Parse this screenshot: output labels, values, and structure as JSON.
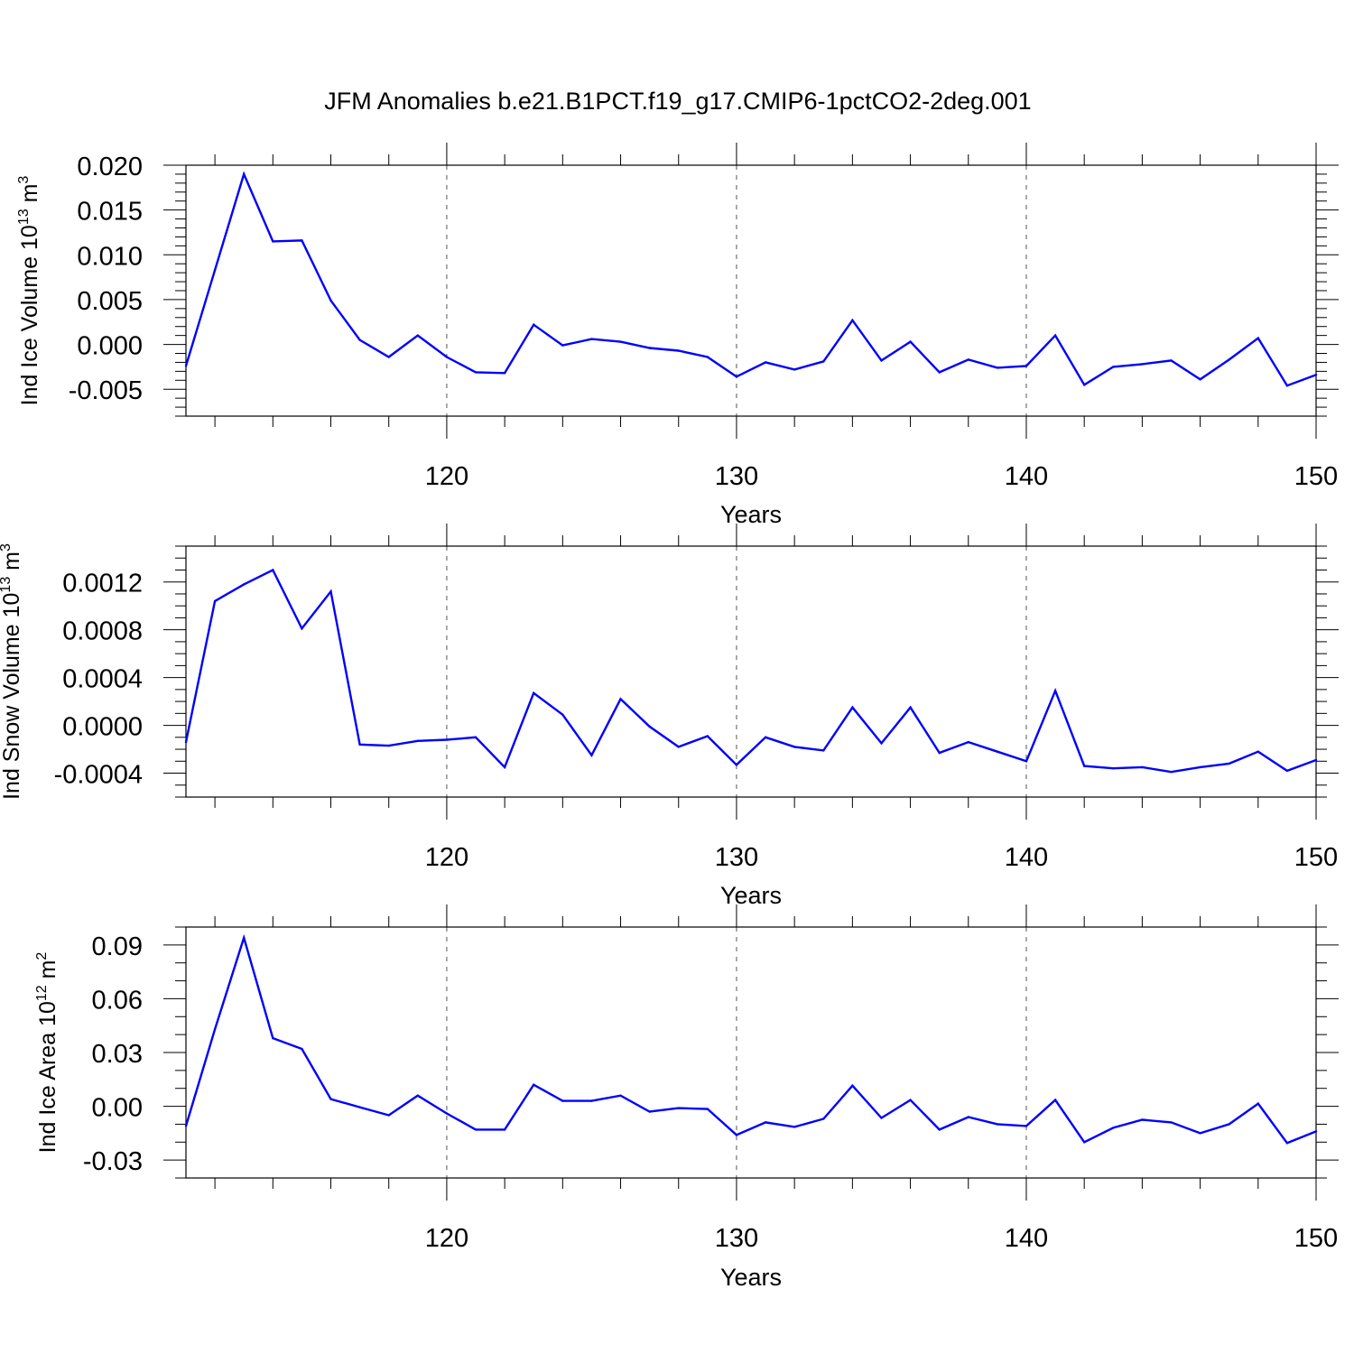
{
  "figure": {
    "title": "JFM Anomalies b.e21.B1PCT.f19_g17.CMIP6-1pctCO2-2deg.001"
  },
  "chart_data": [
    {
      "type": "line",
      "ylabel": "Ind Ice Volume 10",
      "ylabel_sup": "13",
      "ylabel_unit": " m",
      "ylabel_unit_sup": "3",
      "xlabel": "Years",
      "xlim": [
        111,
        150
      ],
      "ylim": [
        -0.008,
        0.02
      ],
      "xticks": [
        120,
        130,
        140,
        150
      ],
      "xtick_labels": [
        "120",
        "130",
        "140",
        "150"
      ],
      "yticks": [
        0.02,
        0.015,
        0.01,
        0.005,
        0.0,
        -0.005
      ],
      "ytick_labels": [
        "0.020",
        "0.015",
        "0.010",
        "0.005",
        "0.000",
        "-0.005"
      ],
      "y_minor_step": 0.001,
      "grid_x": [
        120,
        130,
        140
      ],
      "series": [
        {
          "color": "#0000ff",
          "x": [
            111,
            112,
            113,
            114,
            115,
            116,
            117,
            118,
            119,
            120,
            121,
            122,
            123,
            124,
            125,
            126,
            127,
            128,
            129,
            130,
            131,
            132,
            133,
            134,
            135,
            136,
            137,
            138,
            139,
            140,
            141,
            142,
            143,
            144,
            145,
            146,
            147,
            148,
            149,
            150
          ],
          "y": [
            -0.0024,
            0.0083,
            0.019,
            0.0115,
            0.0116,
            0.0049,
            0.0005,
            -0.0014,
            0.001,
            -0.0014,
            -0.0031,
            -0.0032,
            0.0022,
            -0.0001,
            0.0006,
            0.0003,
            -0.0004,
            -0.0007,
            -0.0014,
            -0.0036,
            -0.002,
            -0.0028,
            -0.0019,
            0.0027,
            -0.0018,
            0.0003,
            -0.0031,
            -0.0017,
            -0.0026,
            -0.0024,
            0.001,
            -0.0045,
            -0.0025,
            -0.0022,
            -0.0018,
            -0.0039,
            -0.0017,
            0.0007,
            -0.0046,
            -0.0034
          ]
        }
      ]
    },
    {
      "type": "line",
      "ylabel": "Ind Snow Volume 10",
      "ylabel_sup": "13",
      "ylabel_unit": " m",
      "ylabel_unit_sup": "3",
      "xlabel": "Years",
      "xlim": [
        111,
        150
      ],
      "ylim": [
        -0.0006,
        0.0015
      ],
      "xticks": [
        120,
        130,
        140,
        150
      ],
      "xtick_labels": [
        "120",
        "130",
        "140",
        "150"
      ],
      "yticks": [
        0.0012,
        0.0008,
        0.0004,
        0.0,
        -0.0004
      ],
      "ytick_labels": [
        "0.0012",
        "0.0008",
        "0.0004",
        "0.0000",
        "-0.0004"
      ],
      "y_minor_step": 0.0001,
      "grid_x": [
        120,
        130,
        140
      ],
      "series": [
        {
          "color": "#0000ff",
          "x": [
            111,
            112,
            113,
            114,
            115,
            116,
            117,
            118,
            119,
            120,
            121,
            122,
            123,
            124,
            125,
            126,
            127,
            128,
            129,
            130,
            131,
            132,
            133,
            134,
            135,
            136,
            137,
            138,
            139,
            140,
            141,
            142,
            143,
            144,
            145,
            146,
            147,
            148,
            149,
            150
          ],
          "y": [
            -0.00014,
            0.00104,
            0.00118,
            0.0013,
            0.00081,
            0.00112,
            -0.00016,
            -0.00017,
            -0.00013,
            -0.00012,
            -0.0001,
            -0.00035,
            0.00027,
            9e-05,
            -0.00025,
            0.00022,
            -1e-05,
            -0.00018,
            -9e-05,
            -0.00033,
            -0.0001,
            -0.00018,
            -0.00021,
            0.00015,
            -0.00015,
            0.00015,
            -0.00023,
            -0.00014,
            -0.00022,
            -0.0003,
            0.00029,
            -0.00034,
            -0.00036,
            -0.00035,
            -0.00039,
            -0.00035,
            -0.00032,
            -0.00022,
            -0.00038,
            -0.00029
          ]
        }
      ]
    },
    {
      "type": "line",
      "ylabel": "Ind Ice Area 10",
      "ylabel_sup": "12",
      "ylabel_unit": " m",
      "ylabel_unit_sup": "2",
      "xlabel": "Years",
      "xlim": [
        111,
        150
      ],
      "ylim": [
        -0.04,
        0.1
      ],
      "xticks": [
        120,
        130,
        140,
        150
      ],
      "xtick_labels": [
        "120",
        "130",
        "140",
        "150"
      ],
      "yticks": [
        0.09,
        0.06,
        0.03,
        0.0,
        -0.03
      ],
      "ytick_labels": [
        "0.09",
        "0.06",
        "0.03",
        "0.00",
        "-0.03"
      ],
      "y_minor_step": 0.01,
      "grid_x": [
        120,
        130,
        140
      ],
      "series": [
        {
          "color": "#0000ff",
          "x": [
            111,
            112,
            113,
            114,
            115,
            116,
            117,
            118,
            119,
            120,
            121,
            122,
            123,
            124,
            125,
            126,
            127,
            128,
            129,
            130,
            131,
            132,
            133,
            134,
            135,
            136,
            137,
            138,
            139,
            140,
            141,
            142,
            143,
            144,
            145,
            146,
            147,
            148,
            149,
            150
          ],
          "y": [
            -0.011,
            0.043,
            0.094,
            0.038,
            0.032,
            0.004,
            -0.0005,
            -0.005,
            0.006,
            -0.004,
            -0.013,
            -0.013,
            0.012,
            0.003,
            0.003,
            0.006,
            -0.003,
            -0.001,
            -0.0015,
            -0.016,
            -0.009,
            -0.0115,
            -0.007,
            0.0115,
            -0.0065,
            0.0035,
            -0.013,
            -0.006,
            -0.01,
            -0.011,
            0.0035,
            -0.02,
            -0.012,
            -0.0075,
            -0.009,
            -0.015,
            -0.01,
            0.0015,
            -0.0205,
            -0.014
          ]
        }
      ]
    }
  ]
}
